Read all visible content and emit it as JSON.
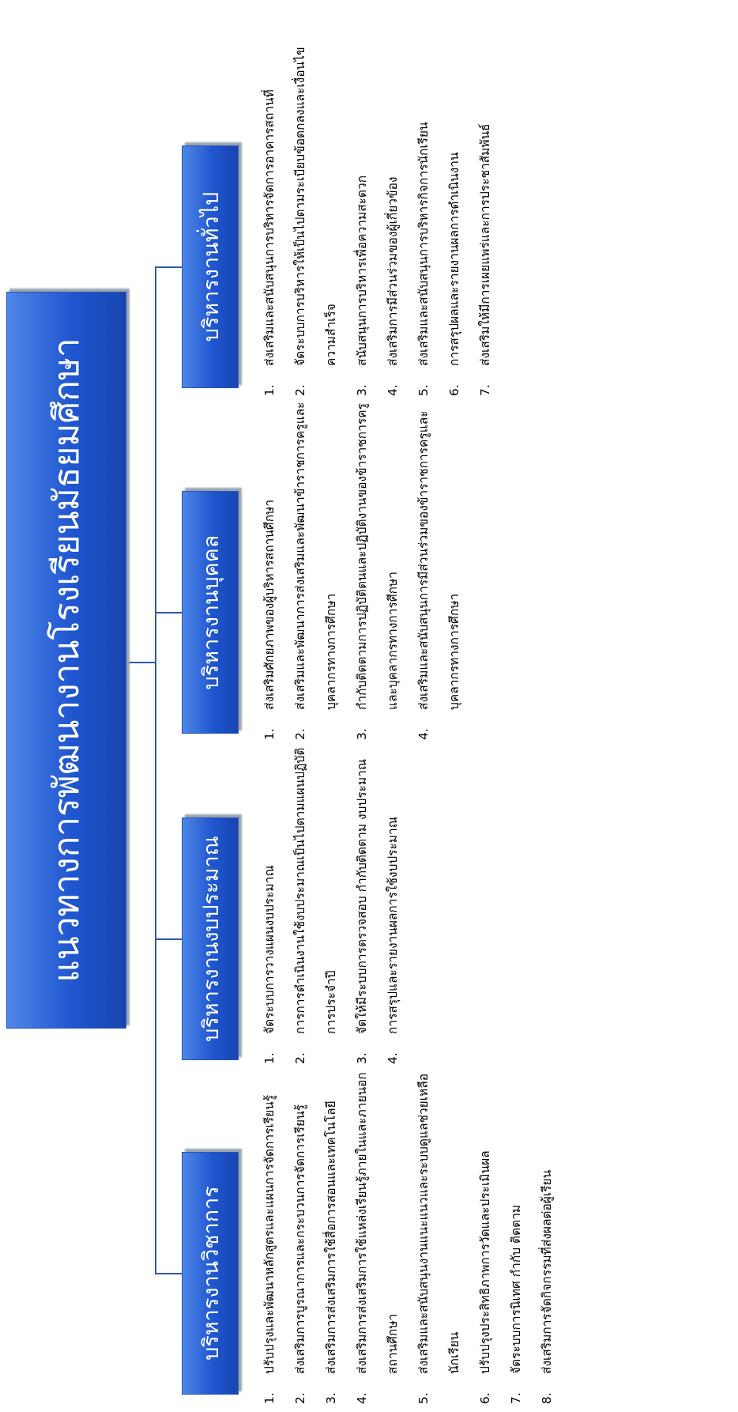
{
  "title": "แนวทางการพัฒนางานโรงเรียนมัธยมศึกษา",
  "categories": [
    {
      "label": "บริหารงานวิชาการ",
      "items": [
        {
          "num": "1.",
          "text": "ปรับปรุงและพัฒนาหลักสูตรและแผนการจัดการเรียนรู้"
        },
        {
          "num": "2.",
          "text": "ส่งเสริมการบูรณาการและกระบวนการจัดการเรียนรู้"
        },
        {
          "num": "3.",
          "text": "ส่งเสริมการส่งเสริมการใช้สื่อการสอนและเทคโนโลยี"
        },
        {
          "num": "4.",
          "text": "ส่งเสริมการส่งเสริมการใช้แหล่งเรียนรู้ภายในและภายนอกสถานศึกษา"
        },
        {
          "num": "5.",
          "text": "ส่งเสริมและสนับสนุนงานแนะแนวและระบบดูแลช่วยเหลือนักเรียน"
        },
        {
          "num": "6.",
          "text": "ปรับปรุงประสิทธิภาพการวัดและประเมินผล"
        },
        {
          "num": "7.",
          "text": "จัดระบบการนิเทศ กำกับ ติดตาม"
        },
        {
          "num": "8.",
          "text": "ส่งเสริมการจัดกิจกรรมที่ส่งผลต่อผู้เรียน"
        }
      ]
    },
    {
      "label": "บริหารงานงบประมาณ",
      "items": [
        {
          "num": "1.",
          "text": "จัดระบบการวางแผนงบประมาณ"
        },
        {
          "num": "2.",
          "text": "การการดำเนินงานใช้งบประมาณเป็นไปตามแผนปฏิบัติการประจำปี"
        },
        {
          "num": "3.",
          "text": "จัดให้มีระบบการตรวจสอบ กำกับติดตาม งบประมาณ"
        },
        {
          "num": "4.",
          "text": "การสรุปและรายงานผลการใช้งบประมาณ"
        }
      ]
    },
    {
      "label": "บริหารงานบุคคล",
      "items": [
        {
          "num": "1.",
          "text": "ส่งเสริมศักยภาพของผู้บริหารสถานศึกษา"
        },
        {
          "num": "2.",
          "text": "ส่งเสริมและพัฒนาการส่งเสริมและพัฒนาข้าราชการครูและบุคลากรทางการศึกษา"
        },
        {
          "num": "3.",
          "text": "กำกับติดตามการปฏิบัติตนและปฏิบัติงานของข้าราชการครูและบุคลากรทางการศึกษา"
        },
        {
          "num": "4.",
          "text": "ส่งเสริมและสนับสนุนการมีส่วนร่วมของข้าราชการครูและบุคลากรทางการศึกษา"
        }
      ]
    },
    {
      "label": "บริหารงานทั่วไป",
      "items": [
        {
          "num": "1.",
          "text": "ส่งเสริมและสนับสนุนการบริหารจัดการอาคารสถานที่"
        },
        {
          "num": "2.",
          "text": "จัดระบบการบริหารให้เป็นไปตามระเบียบข้อตกลงและเงื่อนไขความสำเร็จ"
        },
        {
          "num": "3.",
          "text": "สนับสนุนการบริหารเพื่อความสะดวก"
        },
        {
          "num": "4.",
          "text": "ส่งเสริมการมีส่วนร่วมของผู้เกี่ยวข้อง"
        },
        {
          "num": "5.",
          "text": "ส่งเสริมและสนับสนุนการบริหารกิจการนักเรียน"
        },
        {
          "num": "6.",
          "text": "การสรุปผลและรายงานผลการดำเนินงาน"
        },
        {
          "num": "7.",
          "text": "ส่งเสริมให้มีการเผยแพร่และการประชาสัมพันธ์"
        }
      ]
    }
  ]
}
